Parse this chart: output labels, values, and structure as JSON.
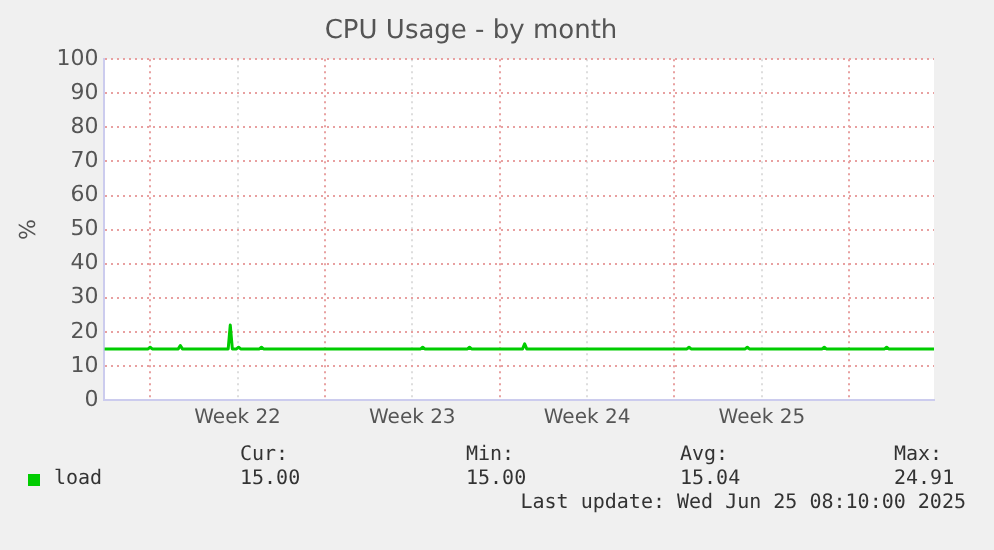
{
  "chart_data": {
    "type": "line",
    "title": "CPU Usage - by month",
    "ylabel": "%",
    "x": [
      "2025-05-24T04:00",
      "2025-05-25T22:00",
      "2025-05-26T00:00",
      "2025-05-26T02:00",
      "2025-05-27T03:00",
      "2025-05-27T05:00",
      "2025-05-27T07:00",
      "2025-05-29T03:00",
      "2025-05-29T05:00",
      "2025-05-29T07:00",
      "2025-05-29T11:00",
      "2025-05-29T13:00",
      "2025-05-29T15:00",
      "2025-05-30T09:00",
      "2025-05-30T11:00",
      "2025-05-30T13:00",
      "2025-06-05T20:00",
      "2025-06-05T22:00",
      "2025-06-06T00:00",
      "2025-06-07T17:00",
      "2025-06-07T19:00",
      "2025-06-07T21:00",
      "2025-06-09T22:00",
      "2025-06-10T00:00",
      "2025-06-10T02:00",
      "2025-06-16T12:00",
      "2025-06-16T14:00",
      "2025-06-16T16:00",
      "2025-06-18T20:00",
      "2025-06-18T22:00",
      "2025-06-19T00:00",
      "2025-06-21T22:00",
      "2025-06-22T00:00",
      "2025-06-22T02:00",
      "2025-06-24T10:00",
      "2025-06-24T12:00",
      "2025-06-24T14:00",
      "2025-06-26T09:30"
    ],
    "series": [
      {
        "name": "load",
        "color": "#00cc00",
        "values": [
          15,
          15,
          15.5,
          15,
          15,
          16,
          15,
          15,
          22,
          15,
          15,
          15.5,
          15,
          15,
          15.5,
          15,
          15,
          15.5,
          15,
          15,
          15.5,
          15,
          15,
          16.5,
          15,
          15,
          15.5,
          15,
          15,
          15.5,
          15,
          15,
          15.5,
          15,
          15,
          15.5,
          15,
          15
        ]
      }
    ],
    "xlim": [
      "2025-05-24T04:00",
      "2025-06-26T09:30"
    ],
    "xticks": [
      {
        "value": "2025-05-26T00:00",
        "label": null
      },
      {
        "value": "2025-05-29T12:00",
        "label": "Week 22"
      },
      {
        "value": "2025-06-02T00:00",
        "label": null
      },
      {
        "value": "2025-06-05T12:00",
        "label": "Week 23"
      },
      {
        "value": "2025-06-09T00:00",
        "label": null
      },
      {
        "value": "2025-06-12T12:00",
        "label": "Week 24"
      },
      {
        "value": "2025-06-16T00:00",
        "label": null
      },
      {
        "value": "2025-06-19T12:00",
        "label": "Week 25"
      },
      {
        "value": "2025-06-23T00:00",
        "label": null
      }
    ],
    "ylim": [
      0,
      100
    ],
    "yticks": [
      0,
      10,
      20,
      30,
      40,
      50,
      60,
      70,
      80,
      90,
      100
    ],
    "grid": true,
    "legend": "bottom left",
    "marker": "none",
    "line_style": "solid",
    "annotations": [
      "Cur:",
      "15.00",
      "Min:",
      "15.00",
      "Avg:",
      "15.04",
      "Max:",
      "24.91",
      "Last update: Wed Jun 25 08:10:00 2025"
    ]
  }
}
